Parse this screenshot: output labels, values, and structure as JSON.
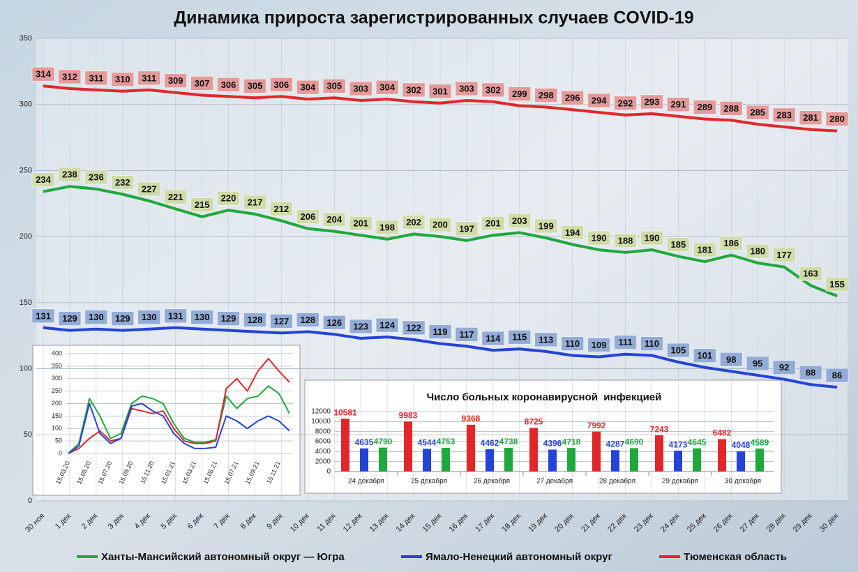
{
  "chart_data": [
    {
      "type": "line",
      "title": "Динамика прироста зарегистрированных случаев COVID-19",
      "categories": [
        "30 ноя",
        "1 дек",
        "2 дек",
        "3 дек",
        "4 дек",
        "5 дек",
        "6 дек",
        "7 дек",
        "8 дек",
        "9 дек",
        "10 дек",
        "11 дек",
        "12 дек",
        "13 дек",
        "14 дек",
        "15 дек",
        "16 дек",
        "17 дек",
        "18 дек",
        "19 дек",
        "20 дек",
        "21 дек",
        "22 дек",
        "23 дек",
        "24 дек",
        "25 дек",
        "26 дек",
        "27 дек",
        "28 дек",
        "29 дек",
        "30 дек"
      ],
      "series": [
        {
          "name": "Ханты-Мансийский автономный округ — Югра",
          "color": "#1fa83c",
          "label_color": "#cfdca8",
          "values": [
            234,
            238,
            236,
            232,
            227,
            221,
            215,
            220,
            217,
            212,
            206,
            204,
            201,
            198,
            202,
            200,
            197,
            201,
            203,
            199,
            194,
            190,
            188,
            190,
            185,
            181,
            186,
            180,
            177,
            163,
            155
          ]
        },
        {
          "name": "Ямало-Ненецкий автономный округ",
          "color": "#2443d8",
          "label_color": "#93acd6",
          "values": [
            131,
            129,
            130,
            129,
            130,
            131,
            130,
            129,
            128,
            127,
            128,
            126,
            123,
            124,
            122,
            119,
            117,
            114,
            115,
            113,
            110,
            109,
            111,
            110,
            105,
            101,
            98,
            95,
            92,
            88,
            86
          ]
        },
        {
          "name": "Тюменская область",
          "color": "#e3262a",
          "label_color": "#e49a9a",
          "values": [
            314,
            312,
            311,
            310,
            311,
            309,
            307,
            306,
            305,
            306,
            304,
            305,
            303,
            304,
            302,
            301,
            303,
            302,
            299,
            298,
            296,
            294,
            292,
            293,
            291,
            289,
            288,
            285,
            283,
            281,
            280
          ]
        }
      ],
      "ylim": [
        0,
        350
      ],
      "yticks": [
        0,
        50,
        100,
        150,
        200,
        250,
        300,
        350
      ],
      "grid": true,
      "legend_position": "bottom"
    },
    {
      "type": "line",
      "categories": [
        "15.03.20",
        null,
        "15.05.20",
        null,
        "15.07.20",
        null,
        "15.09.20",
        null,
        "15.11.20",
        null,
        "15.01.21",
        null,
        "15.03.21",
        null,
        "15.05.21",
        null,
        "15.07.21",
        null,
        "15.09.21",
        null,
        "15.11.21",
        null
      ],
      "series": [
        {
          "color": "#1fa83c",
          "values": [
            0,
            40,
            220,
            150,
            60,
            80,
            200,
            230,
            220,
            200,
            120,
            60,
            45,
            45,
            55,
            230,
            180,
            220,
            230,
            270,
            240,
            160
          ]
        },
        {
          "color": "#e3262a",
          "values": [
            0,
            20,
            60,
            90,
            50,
            60,
            180,
            170,
            160,
            170,
            100,
            50,
            40,
            40,
            50,
            260,
            300,
            250,
            330,
            380,
            330,
            285
          ]
        },
        {
          "color": "#2443d8",
          "values": [
            0,
            30,
            200,
            80,
            40,
            60,
            190,
            200,
            170,
            150,
            80,
            40,
            20,
            20,
            25,
            150,
            130,
            100,
            130,
            150,
            130,
            90
          ]
        }
      ],
      "ylim": [
        0,
        400
      ],
      "yticks": [
        0,
        50,
        100,
        150,
        200,
        250,
        300,
        350,
        400
      ],
      "grid": true
    },
    {
      "type": "bar",
      "title": "Число больных коронавирусной  инфекцией",
      "categories": [
        "24 декабря",
        "25 декабря",
        "26 декабря",
        "27 декабря",
        "28 декабря",
        "29 декабря",
        "30 декабря"
      ],
      "series": [
        {
          "color": "#e3262a",
          "values": [
            10581,
            9983,
            9368,
            8725,
            7992,
            7243,
            6482
          ]
        },
        {
          "color": "#2443d8",
          "values": [
            4635,
            4544,
            4462,
            4396,
            4287,
            4173,
            4048
          ]
        },
        {
          "color": "#1fa83c",
          "values": [
            4790,
            4753,
            4738,
            4718,
            4690,
            4645,
            4589
          ]
        }
      ],
      "ylim": [
        0,
        12000
      ],
      "yticks": [
        0,
        2000,
        4000,
        6000,
        8000,
        10000,
        12000
      ],
      "grid": true
    }
  ]
}
